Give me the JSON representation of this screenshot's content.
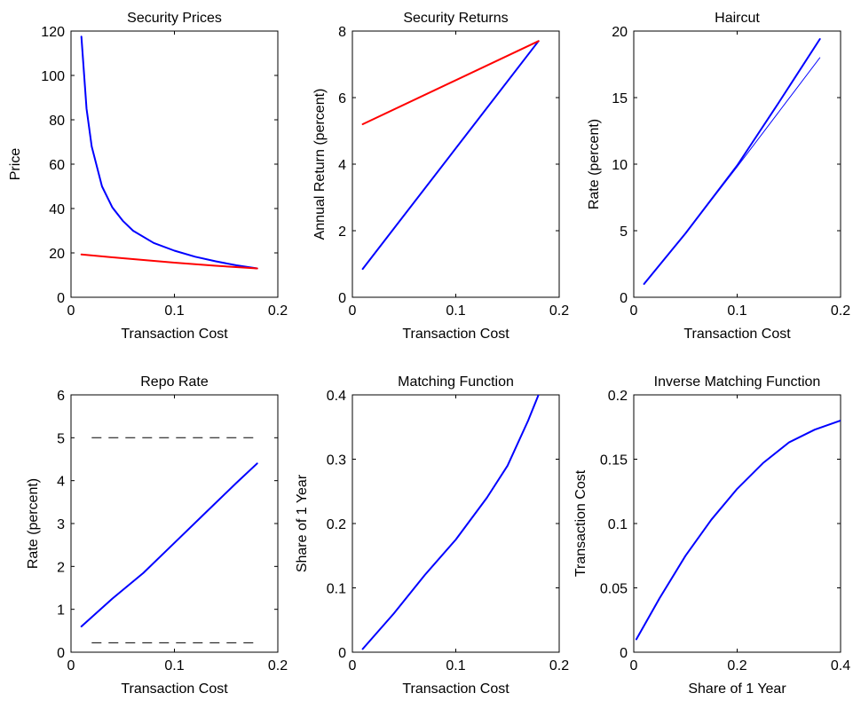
{
  "chart_data": [
    {
      "type": "line",
      "title": "Security Prices",
      "xlabel": "Transaction Cost",
      "ylabel": "Price",
      "xlim": [
        0,
        0.2
      ],
      "ylim": [
        0,
        120
      ],
      "xticks": [
        0,
        0.1,
        0.2
      ],
      "yticks": [
        0,
        20,
        40,
        60,
        80,
        100,
        120
      ],
      "series": [
        {
          "color": "#0000ff",
          "width": 2,
          "dash": false,
          "points": [
            [
              0.01,
              117.5
            ],
            [
              0.015,
              85
            ],
            [
              0.02,
              68
            ],
            [
              0.03,
              50
            ],
            [
              0.04,
              40.5
            ],
            [
              0.05,
              34.5
            ],
            [
              0.06,
              30
            ],
            [
              0.08,
              24.5
            ],
            [
              0.1,
              21
            ],
            [
              0.12,
              18.3
            ],
            [
              0.14,
              16.2
            ],
            [
              0.16,
              14.4
            ],
            [
              0.18,
              13
            ]
          ]
        },
        {
          "color": "#ff0000",
          "width": 2,
          "dash": false,
          "points": [
            [
              0.01,
              19.3
            ],
            [
              0.05,
              17.6
            ],
            [
              0.1,
              15.6
            ],
            [
              0.14,
              14.2
            ],
            [
              0.18,
              13
            ]
          ]
        }
      ]
    },
    {
      "type": "line",
      "title": "Security Returns",
      "xlabel": "Transaction Cost",
      "ylabel": "Annual Return (percent)",
      "xlim": [
        0,
        0.2
      ],
      "ylim": [
        0,
        8
      ],
      "xticks": [
        0,
        0.1,
        0.2
      ],
      "yticks": [
        0,
        2,
        4,
        6,
        8
      ],
      "series": [
        {
          "color": "#0000ff",
          "width": 2,
          "dash": false,
          "points": [
            [
              0.01,
              0.85
            ],
            [
              0.18,
              7.7
            ]
          ]
        },
        {
          "color": "#ff0000",
          "width": 2,
          "dash": false,
          "points": [
            [
              0.01,
              5.2
            ],
            [
              0.18,
              7.7
            ]
          ]
        }
      ]
    },
    {
      "type": "line",
      "title": "Haircut",
      "xlabel": "Transaction Cost",
      "ylabel": "Rate (percent)",
      "xlim": [
        0,
        0.2
      ],
      "ylim": [
        0,
        20
      ],
      "xticks": [
        0,
        0.1,
        0.2
      ],
      "yticks": [
        0,
        5,
        10,
        15,
        20
      ],
      "series": [
        {
          "color": "#0000ff",
          "width": 2,
          "dash": false,
          "points": [
            [
              0.01,
              1
            ],
            [
              0.05,
              4.8
            ],
            [
              0.1,
              9.9
            ],
            [
              0.14,
              14.6
            ],
            [
              0.18,
              19.4
            ]
          ]
        },
        {
          "color": "#0000ff",
          "width": 1,
          "dash": false,
          "points": [
            [
              0.01,
              1
            ],
            [
              0.05,
              4.8
            ],
            [
              0.1,
              9.8
            ],
            [
              0.14,
              13.9
            ],
            [
              0.18,
              18
            ]
          ]
        }
      ]
    },
    {
      "type": "line",
      "title": "Repo Rate",
      "xlabel": "Transaction Cost",
      "ylabel": "Rate (percent)",
      "xlim": [
        0,
        0.2
      ],
      "ylim": [
        0,
        6
      ],
      "xticks": [
        0,
        0.1,
        0.2
      ],
      "yticks": [
        0,
        1,
        2,
        3,
        4,
        5,
        6
      ],
      "series": [
        {
          "color": "#0000ff",
          "width": 2,
          "dash": false,
          "points": [
            [
              0.01,
              0.6
            ],
            [
              0.04,
              1.25
            ],
            [
              0.07,
              1.85
            ],
            [
              0.1,
              2.55
            ],
            [
              0.13,
              3.25
            ],
            [
              0.16,
              3.95
            ],
            [
              0.18,
              4.4
            ]
          ]
        },
        {
          "color": "#000000",
          "width": 1,
          "dash": true,
          "points": [
            [
              0.02,
              5
            ],
            [
              0.18,
              5
            ]
          ]
        },
        {
          "color": "#000000",
          "width": 1,
          "dash": true,
          "points": [
            [
              0.02,
              0.22
            ],
            [
              0.18,
              0.22
            ]
          ]
        }
      ]
    },
    {
      "type": "line",
      "title": "Matching Function",
      "xlabel": "Transaction Cost",
      "ylabel": "Share of 1 Year",
      "xlim": [
        0,
        0.2
      ],
      "ylim": [
        0,
        0.4
      ],
      "xticks": [
        0,
        0.1,
        0.2
      ],
      "yticks": [
        0,
        0.1,
        0.2,
        0.3,
        0.4
      ],
      "series": [
        {
          "color": "#0000ff",
          "width": 2,
          "dash": false,
          "points": [
            [
              0.01,
              0.005
            ],
            [
              0.04,
              0.06
            ],
            [
              0.07,
              0.12
            ],
            [
              0.1,
              0.175
            ],
            [
              0.13,
              0.24
            ],
            [
              0.15,
              0.29
            ],
            [
              0.17,
              0.36
            ],
            [
              0.18,
              0.4
            ]
          ]
        }
      ]
    },
    {
      "type": "line",
      "title": "Inverse Matching Function",
      "xlabel": "Share of 1 Year",
      "ylabel": "Transaction Cost",
      "xlim": [
        0,
        0.4
      ],
      "ylim": [
        0,
        0.2
      ],
      "xticks": [
        0,
        0.2,
        0.4
      ],
      "yticks": [
        0,
        0.05,
        0.1,
        0.15,
        0.2
      ],
      "series": [
        {
          "color": "#0000ff",
          "width": 2,
          "dash": false,
          "points": [
            [
              0.005,
              0.01
            ],
            [
              0.05,
              0.042
            ],
            [
              0.1,
              0.075
            ],
            [
              0.15,
              0.103
            ],
            [
              0.2,
              0.127
            ],
            [
              0.25,
              0.147
            ],
            [
              0.3,
              0.163
            ],
            [
              0.35,
              0.173
            ],
            [
              0.4,
              0.18
            ]
          ]
        }
      ]
    }
  ]
}
